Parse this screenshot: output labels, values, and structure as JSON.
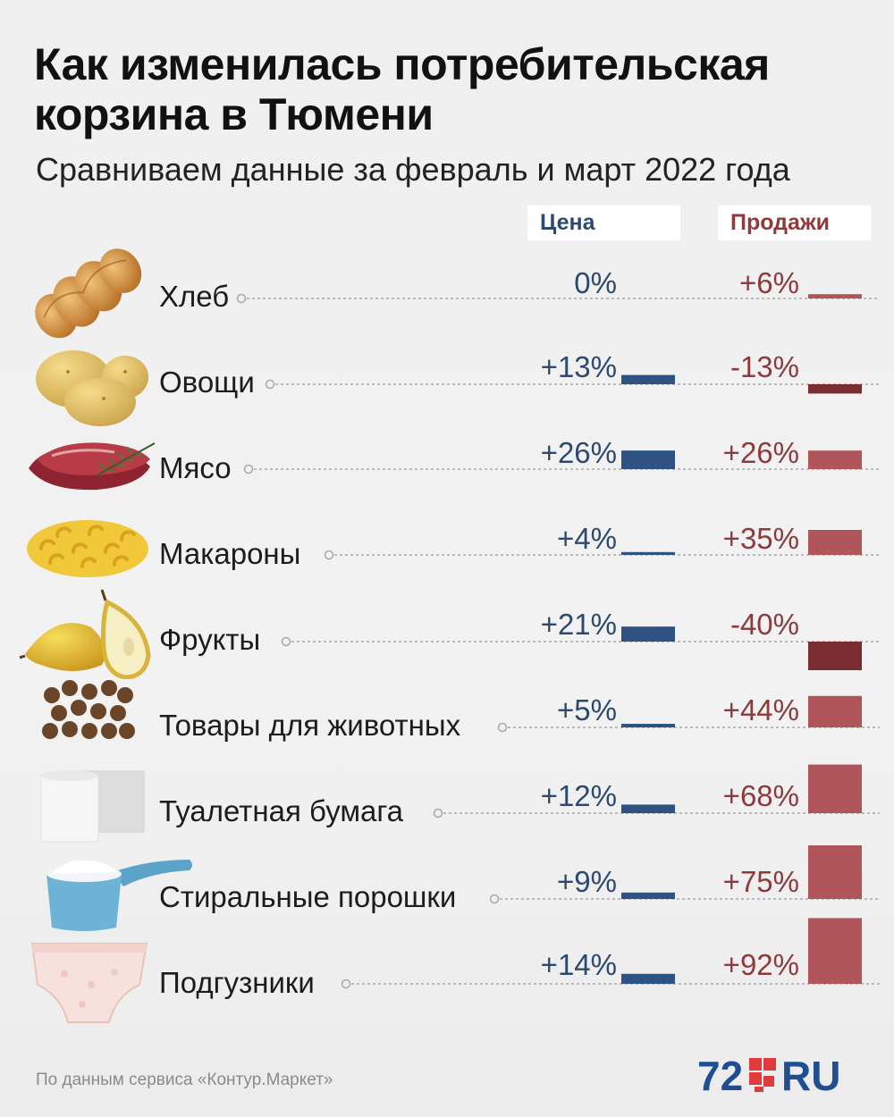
{
  "title": "Как изменилась потребительская корзина в Тюмени",
  "subtitle": "Сравниваем данные за февраль и март 2022 года",
  "columns": {
    "price": "Цена",
    "sales": "Продажи"
  },
  "source": "По данным сервиса «Контур.Маркет»",
  "logo": {
    "number": "72",
    "suffix": "RU"
  },
  "chart_data": {
    "type": "bar",
    "categories": [
      "Хлеб",
      "Овощи",
      "Мясо",
      "Макароны",
      "Фрукты",
      "Товары для животных",
      "Туалетная бумага",
      "Стиральные порошки",
      "Подгузники"
    ],
    "series": [
      {
        "name": "Цена",
        "values": [
          0,
          13,
          26,
          4,
          21,
          5,
          12,
          9,
          14
        ],
        "labels": [
          "0%",
          "+13%",
          "+26%",
          "+4%",
          "+21%",
          "+5%",
          "+12%",
          "+9%",
          "+14%"
        ]
      },
      {
        "name": "Продажи",
        "values": [
          6,
          -13,
          26,
          35,
          -40,
          44,
          68,
          75,
          92
        ],
        "labels": [
          "+6%",
          "-13%",
          "+26%",
          "+35%",
          "-40%",
          "+44%",
          "+68%",
          "+75%",
          "+92%"
        ]
      }
    ],
    "colors": {
      "price": "#2d5283",
      "sales_positive": "#b0565a",
      "sales_negative": "#7a2c30",
      "dots": "#a8a8a8"
    },
    "grid": false,
    "legend": "top-right"
  },
  "icons": [
    "bread-icon",
    "potato-icon",
    "meat-icon",
    "pasta-icon",
    "pear-icon",
    "pet-food-icon",
    "toilet-paper-icon",
    "detergent-scoop-icon",
    "diaper-icon"
  ]
}
